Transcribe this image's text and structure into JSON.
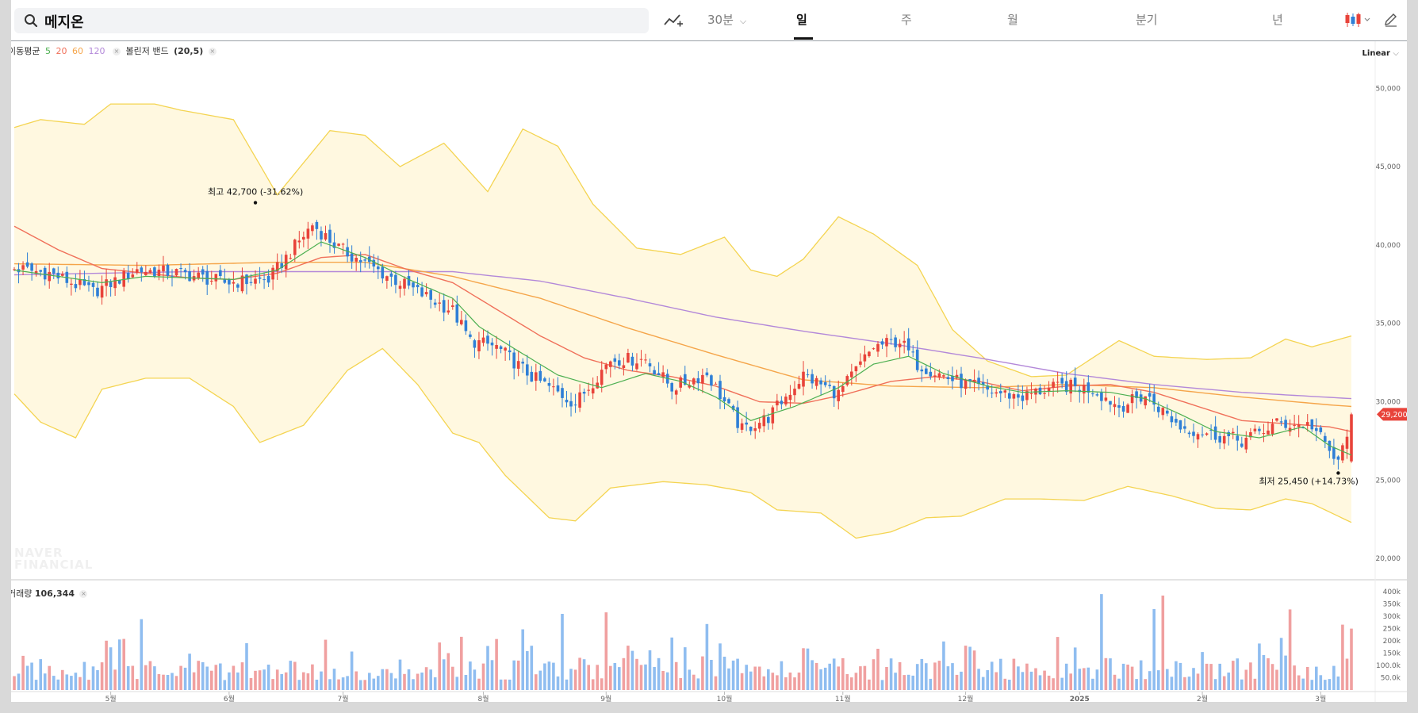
{
  "search": {
    "value": "메지온"
  },
  "toolbar": {
    "minute_label": "30분",
    "periods": [
      "일",
      "주",
      "월",
      "분기",
      "년"
    ],
    "active_period": "일"
  },
  "indicators": {
    "ma_label": "이동평균",
    "ma_periods": [
      "5",
      "20",
      "60",
      "120"
    ],
    "ma_colors": [
      "#4caf50",
      "#f0705a",
      "#f5a54a",
      "#b388d9"
    ],
    "bb_label": "볼린저 밴드",
    "bb_params": "(20,5)"
  },
  "scale_mode": "Linear",
  "watermark": [
    "NAVER",
    "FINANCIAL"
  ],
  "volume": {
    "label": "거래량",
    "value": "106,344"
  },
  "annotations": {
    "high_prefix": "최고",
    "high_value": "42,700 (-31.62%)",
    "low_prefix": "최저",
    "low_value": "25,450 (+14.73%)",
    "current_price": "29,200"
  },
  "colors": {
    "up": "#e8433a",
    "down": "#2f7fd6",
    "band_fill": "#fff8e0",
    "band_line": "#f4d451"
  },
  "chart_data": {
    "type": "candlestick",
    "y_ticks": [
      "50,000",
      "45,000",
      "40,000",
      "35,000",
      "30,000",
      "25,000",
      "20,000"
    ],
    "y_values": [
      50000,
      45000,
      40000,
      35000,
      30000,
      25000,
      20000
    ],
    "ylim": [
      19200,
      53000
    ],
    "x_labels": [
      "5월",
      "6월",
      "7월",
      "8월",
      "9월",
      "10월",
      "11월",
      "12월",
      "2025",
      "2월",
      "3월"
    ],
    "volume_ticks": [
      "400k",
      "350k",
      "300k",
      "250k",
      "200k",
      "150k",
      "100.0k",
      "50.0k"
    ],
    "volume_values": [
      400000,
      350000,
      300000,
      250000,
      200000,
      150000,
      100000,
      50000
    ],
    "volume_ylim": [
      0,
      420000
    ],
    "close_path": [
      [
        0,
        38500
      ],
      [
        8,
        38200
      ],
      [
        18,
        37000
      ],
      [
        28,
        38400
      ],
      [
        38,
        38200
      ],
      [
        48,
        37600
      ],
      [
        58,
        37800
      ],
      [
        68,
        41300
      ],
      [
        74,
        39800
      ],
      [
        84,
        38200
      ],
      [
        90,
        37300
      ],
      [
        100,
        35800
      ],
      [
        104,
        33900
      ],
      [
        110,
        33500
      ],
      [
        118,
        31600
      ],
      [
        128,
        29900
      ],
      [
        136,
        32700
      ],
      [
        144,
        32700
      ],
      [
        150,
        30900
      ],
      [
        158,
        31800
      ],
      [
        166,
        28200
      ],
      [
        172,
        29000
      ],
      [
        180,
        31700
      ],
      [
        188,
        30500
      ],
      [
        196,
        33500
      ],
      [
        202,
        33900
      ],
      [
        206,
        32400
      ],
      [
        214,
        31400
      ],
      [
        222,
        30700
      ],
      [
        230,
        30300
      ],
      [
        234,
        30700
      ],
      [
        240,
        31000
      ],
      [
        246,
        30800
      ],
      [
        252,
        29700
      ],
      [
        258,
        30400
      ],
      [
        266,
        28400
      ],
      [
        272,
        28000
      ],
      [
        280,
        27500
      ],
      [
        288,
        28600
      ],
      [
        296,
        28500
      ],
      [
        302,
        26000
      ],
      [
        305,
        29200
      ]
    ],
    "ma5": [
      [
        0,
        38400
      ],
      [
        10,
        38000
      ],
      [
        20,
        37600
      ],
      [
        30,
        38000
      ],
      [
        40,
        37900
      ],
      [
        50,
        37800
      ],
      [
        60,
        38400
      ],
      [
        70,
        40200
      ],
      [
        80,
        39200
      ],
      [
        90,
        37800
      ],
      [
        100,
        36600
      ],
      [
        106,
        34800
      ],
      [
        114,
        33400
      ],
      [
        124,
        31700
      ],
      [
        134,
        30900
      ],
      [
        144,
        31800
      ],
      [
        152,
        31300
      ],
      [
        160,
        30300
      ],
      [
        168,
        28800
      ],
      [
        178,
        29700
      ],
      [
        188,
        30900
      ],
      [
        196,
        32400
      ],
      [
        204,
        32900
      ],
      [
        212,
        31800
      ],
      [
        222,
        31000
      ],
      [
        230,
        30600
      ],
      [
        240,
        30700
      ],
      [
        250,
        30600
      ],
      [
        258,
        30200
      ],
      [
        266,
        29200
      ],
      [
        274,
        28100
      ],
      [
        284,
        27700
      ],
      [
        294,
        28400
      ],
      [
        300,
        27200
      ],
      [
        305,
        26600
      ]
    ],
    "ma20": [
      [
        0,
        41200
      ],
      [
        10,
        39700
      ],
      [
        20,
        38500
      ],
      [
        30,
        38200
      ],
      [
        40,
        37900
      ],
      [
        50,
        37800
      ],
      [
        60,
        38200
      ],
      [
        70,
        39200
      ],
      [
        80,
        39400
      ],
      [
        90,
        38400
      ],
      [
        100,
        37600
      ],
      [
        110,
        35900
      ],
      [
        120,
        34200
      ],
      [
        130,
        32800
      ],
      [
        140,
        32000
      ],
      [
        150,
        31600
      ],
      [
        160,
        31000
      ],
      [
        170,
        30000
      ],
      [
        180,
        29900
      ],
      [
        190,
        30500
      ],
      [
        200,
        31300
      ],
      [
        210,
        31600
      ],
      [
        220,
        31300
      ],
      [
        230,
        30700
      ],
      [
        240,
        31000
      ],
      [
        250,
        31100
      ],
      [
        260,
        30600
      ],
      [
        270,
        29700
      ],
      [
        280,
        28800
      ],
      [
        290,
        28600
      ],
      [
        300,
        28400
      ],
      [
        305,
        28100
      ]
    ],
    "ma60": [
      [
        0,
        38800
      ],
      [
        30,
        38700
      ],
      [
        60,
        38900
      ],
      [
        80,
        38900
      ],
      [
        100,
        38000
      ],
      [
        120,
        36600
      ],
      [
        140,
        34700
      ],
      [
        160,
        33000
      ],
      [
        180,
        31400
      ],
      [
        200,
        31000
      ],
      [
        220,
        30900
      ],
      [
        240,
        31100
      ],
      [
        260,
        30900
      ],
      [
        280,
        30300
      ],
      [
        300,
        29800
      ],
      [
        305,
        29700
      ]
    ],
    "ma120": [
      [
        0,
        38100
      ],
      [
        40,
        38300
      ],
      [
        80,
        38300
      ],
      [
        100,
        38300
      ],
      [
        120,
        37700
      ],
      [
        140,
        36600
      ],
      [
        160,
        35400
      ],
      [
        180,
        34500
      ],
      [
        200,
        33700
      ],
      [
        220,
        32800
      ],
      [
        240,
        31800
      ],
      [
        260,
        31100
      ],
      [
        280,
        30600
      ],
      [
        305,
        30200
      ]
    ],
    "bb_upper": [
      [
        0,
        47500
      ],
      [
        6,
        48000
      ],
      [
        16,
        47700
      ],
      [
        22,
        49000
      ],
      [
        32,
        49000
      ],
      [
        38,
        48600
      ],
      [
        50,
        48000
      ],
      [
        60,
        43200
      ],
      [
        72,
        47300
      ],
      [
        80,
        47000
      ],
      [
        88,
        45000
      ],
      [
        98,
        46500
      ],
      [
        108,
        43400
      ],
      [
        116,
        47400
      ],
      [
        124,
        46300
      ],
      [
        132,
        42600
      ],
      [
        142,
        39800
      ],
      [
        152,
        39400
      ],
      [
        162,
        40500
      ],
      [
        168,
        38400
      ],
      [
        174,
        38000
      ],
      [
        180,
        39100
      ],
      [
        188,
        41800
      ],
      [
        196,
        40700
      ],
      [
        206,
        38700
      ],
      [
        214,
        34600
      ],
      [
        222,
        32600
      ],
      [
        232,
        31600
      ],
      [
        240,
        31700
      ],
      [
        252,
        33900
      ],
      [
        260,
        32900
      ],
      [
        272,
        32700
      ],
      [
        282,
        32800
      ],
      [
        290,
        34000
      ],
      [
        296,
        33500
      ],
      [
        305,
        34200
      ]
    ],
    "bb_lower": [
      [
        0,
        30500
      ],
      [
        6,
        28700
      ],
      [
        14,
        27700
      ],
      [
        20,
        30800
      ],
      [
        30,
        31500
      ],
      [
        40,
        31500
      ],
      [
        50,
        29700
      ],
      [
        56,
        27400
      ],
      [
        66,
        28500
      ],
      [
        76,
        32000
      ],
      [
        84,
        33400
      ],
      [
        92,
        31100
      ],
      [
        100,
        28000
      ],
      [
        106,
        27400
      ],
      [
        112,
        25300
      ],
      [
        122,
        22600
      ],
      [
        128,
        22400
      ],
      [
        136,
        24500
      ],
      [
        148,
        24900
      ],
      [
        158,
        24700
      ],
      [
        168,
        24200
      ],
      [
        174,
        23100
      ],
      [
        184,
        22900
      ],
      [
        192,
        21300
      ],
      [
        200,
        21700
      ],
      [
        208,
        22600
      ],
      [
        216,
        22700
      ],
      [
        226,
        23800
      ],
      [
        234,
        23800
      ],
      [
        244,
        23700
      ],
      [
        254,
        24600
      ],
      [
        264,
        24000
      ],
      [
        274,
        23200
      ],
      [
        282,
        23100
      ],
      [
        290,
        23800
      ],
      [
        296,
        23500
      ],
      [
        305,
        22300
      ]
    ],
    "high_point": [
      55,
      42700
    ],
    "low_point": [
      302,
      25450
    ],
    "last_candle": {
      "open": 26200,
      "close": 29200,
      "high": 29300,
      "low": 26100
    }
  }
}
